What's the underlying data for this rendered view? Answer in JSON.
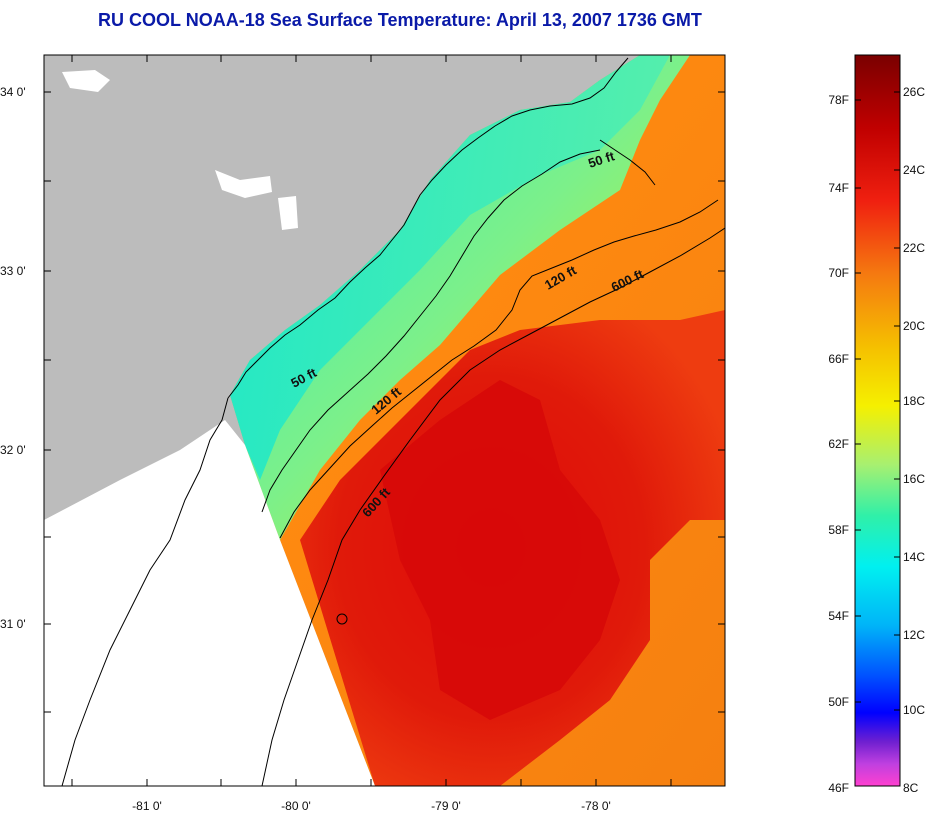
{
  "title": "RU COOL  NOAA-18  Sea Surface Temperature:  April 13, 2007 1736 GMT",
  "axes": {
    "x_ticks": [
      "-81 0'",
      "-80 0'",
      "-79 0'",
      "-78 0'"
    ],
    "y_ticks": [
      "34 0'",
      "33 0'",
      "32 0'",
      "31 0'"
    ]
  },
  "contours": {
    "c50_a": "50 ft",
    "c50_b": "50 ft",
    "c120_a": "120 ft",
    "c120_b": "120 ft",
    "c600_a": "600 ft",
    "c600_b": "600 ft"
  },
  "colorbar": {
    "fahrenheit": [
      "78F",
      "74F",
      "70F",
      "66F",
      "62F",
      "58F",
      "54F",
      "50F",
      "46F"
    ],
    "celsius": [
      "26C",
      "24C",
      "22C",
      "20C",
      "18C",
      "16C",
      "14C",
      "12C",
      "10C",
      "8C"
    ],
    "gradient_top_to_bottom": [
      "#7a0000",
      "#c00000",
      "#f03010",
      "#f57a10",
      "#f5c000",
      "#f5f000",
      "#9ff070",
      "#30f0a8",
      "#00f0f0",
      "#00c8f0",
      "#0060ff",
      "#0000ff",
      "#6000c0",
      "#c040e0",
      "#ff40d0"
    ]
  },
  "colors": {
    "land": "#bcbcbc",
    "no_data": "#ffffff",
    "title": "#0a1aa8"
  }
}
